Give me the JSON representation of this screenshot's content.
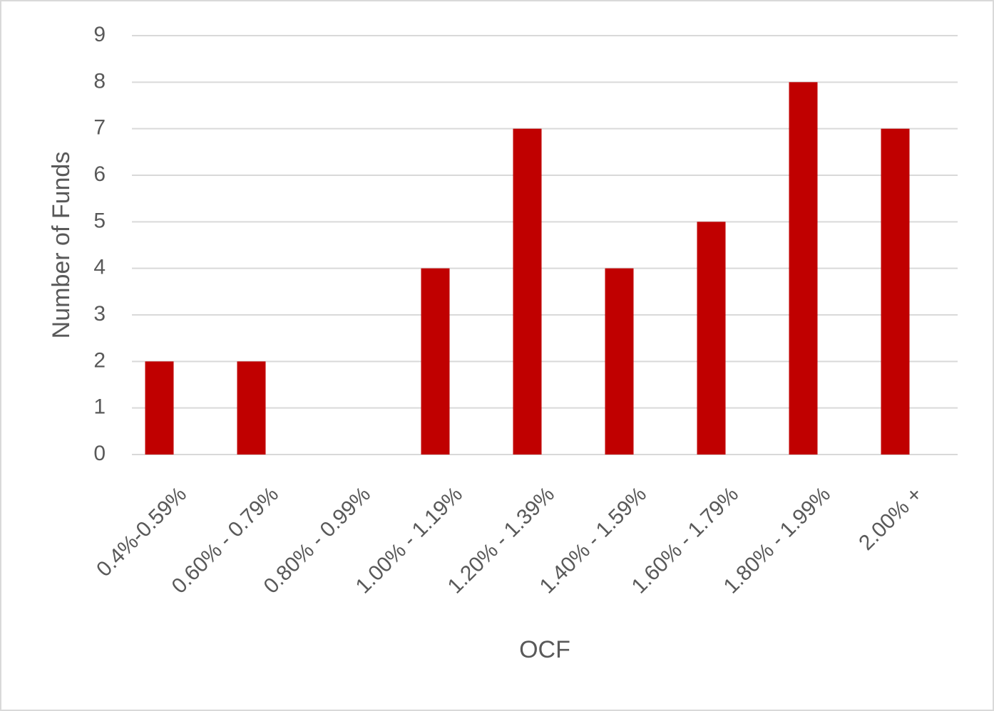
{
  "chart_data": {
    "type": "bar",
    "categories": [
      "0.4%-0.59%",
      "0.60% - 0.79%",
      "0.80% - 0.99%",
      "1.00% - 1.19%",
      "1.20% - 1.39%",
      "1.40% - 1.59%",
      "1.60% - 1.79%",
      "1.80% - 1.99%",
      "2.00% +"
    ],
    "values": [
      2,
      2,
      0,
      4,
      7,
      4,
      5,
      8,
      7
    ],
    "color": "#c00000",
    "x_label": "OCF",
    "y_label": "Number of Funds",
    "ylim": [
      0,
      9
    ],
    "yticks": [
      0,
      1,
      2,
      3,
      4,
      5,
      6,
      7,
      8,
      9
    ],
    "grid": true
  }
}
